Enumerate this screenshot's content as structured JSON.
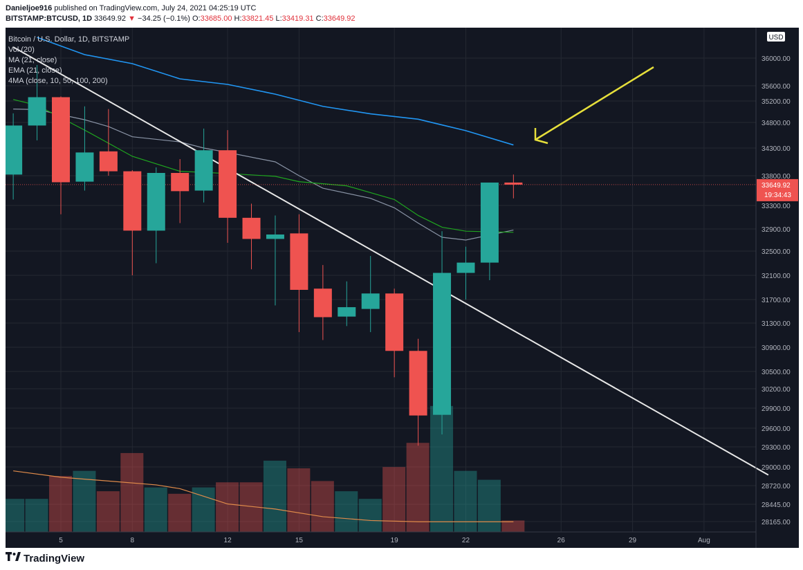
{
  "header": {
    "author": "Danieljoe916",
    "published_text": "published on TradingView.com, July 24, 2021 04:25:19 UTC",
    "symbol": "BITSTAMP:BTCUSD, 1D",
    "last": "33649.92",
    "change_arrow": "▼",
    "change": "−34.25 (−0.1%)",
    "o_label": "O:",
    "o_val": "33685.00",
    "h_label": "H:",
    "h_val": "33821.45",
    "l_label": "L:",
    "l_val": "33419.31",
    "c_label": "C:",
    "c_val": "33649.92"
  },
  "legend": {
    "title": "Bitcoin / U.S. Dollar, 1D, BITSTAMP",
    "items": [
      "Vol (20)",
      "MA (21, close)",
      "EMA (21, close)",
      "4MA (close, 10, 50, 100, 200)"
    ]
  },
  "footer": {
    "brand": "TradingView",
    "logo_icon": "tradingview-logo-icon"
  },
  "colors": {
    "background": "#131722",
    "up": "#26a69a",
    "down": "#ef5350",
    "grid": "#242832",
    "axis_text": "#b2b5be",
    "ma200": "#2196f3",
    "ema": "#1fa61f",
    "ma": "#8a94a6",
    "trendline": "#e8e8e8",
    "vol_ma": "#e08b4a",
    "arrow": "#e6df3b",
    "price_label": "#ef5350"
  },
  "chart_data": {
    "type": "candlestick",
    "currency_label": "USD",
    "y_ticks": [
      {
        "label": "36000.00",
        "v": 36000
      },
      {
        "label": "35600.00",
        "v": 35600
      },
      {
        "label": "35200.00",
        "v": 35200
      },
      {
        "label": "34800.00",
        "v": 34800
      },
      {
        "label": "34300.00",
        "v": 34300
      },
      {
        "label": "33800.00",
        "v": 33800
      },
      {
        "label": "33300.00",
        "v": 33300
      },
      {
        "label": "32900.00",
        "v": 32900
      },
      {
        "label": "32500.00",
        "v": 32500
      },
      {
        "label": "32100.00",
        "v": 32100
      },
      {
        "label": "31700.00",
        "v": 31700
      },
      {
        "label": "31300.00",
        "v": 31300
      },
      {
        "label": "30900.00",
        "v": 30900
      },
      {
        "label": "30500.00",
        "v": 30500
      },
      {
        "label": "30200.00",
        "v": 30200
      },
      {
        "label": "29900.00",
        "v": 29900
      },
      {
        "label": "29600.00",
        "v": 29600
      },
      {
        "label": "29300.00",
        "v": 29300
      },
      {
        "label": "29000.00",
        "v": 29000
      },
      {
        "label": "28720.00",
        "v": 28720
      },
      {
        "label": "28445.00",
        "v": 28445
      },
      {
        "label": "28165.00",
        "v": 28165
      }
    ],
    "x_ticks": [
      {
        "label": "5",
        "day": 5
      },
      {
        "label": "8",
        "day": 8
      },
      {
        "label": "12",
        "day": 12
      },
      {
        "label": "15",
        "day": 15
      },
      {
        "label": "19",
        "day": 19
      },
      {
        "label": "22",
        "day": 22
      },
      {
        "label": "26",
        "day": 26
      },
      {
        "label": "29",
        "day": 29
      },
      {
        "label": "Aug",
        "day": 32
      }
    ],
    "last_price_label": "33649.92",
    "countdown_label": "19:34:43",
    "last_price": 33649.92,
    "candles": [
      {
        "day": 3,
        "o": 33820,
        "h": 34970,
        "l": 33400,
        "c": 34740,
        "vol": 0.26
      },
      {
        "day": 4,
        "o": 34740,
        "h": 35900,
        "l": 34450,
        "c": 35300,
        "vol": 0.26
      },
      {
        "day": 5,
        "o": 35300,
        "h": 35320,
        "l": 33150,
        "c": 33690,
        "vol": 0.44
      },
      {
        "day": 6,
        "o": 33700,
        "h": 35100,
        "l": 33550,
        "c": 34220,
        "vol": 0.48
      },
      {
        "day": 7,
        "o": 34240,
        "h": 35050,
        "l": 33800,
        "c": 33880,
        "vol": 0.32
      },
      {
        "day": 8,
        "o": 33880,
        "h": 33900,
        "l": 32100,
        "c": 32870,
        "vol": 0.62
      },
      {
        "day": 9,
        "o": 32870,
        "h": 33950,
        "l": 32300,
        "c": 33850,
        "vol": 0.35
      },
      {
        "day": 10,
        "o": 33850,
        "h": 34100,
        "l": 33000,
        "c": 33540,
        "vol": 0.3
      },
      {
        "day": 11,
        "o": 33550,
        "h": 34680,
        "l": 33350,
        "c": 34260,
        "vol": 0.35
      },
      {
        "day": 12,
        "o": 34260,
        "h": 34650,
        "l": 32650,
        "c": 33090,
        "vol": 0.39
      },
      {
        "day": 13,
        "o": 33090,
        "h": 33330,
        "l": 32200,
        "c": 32720,
        "vol": 0.39
      },
      {
        "day": 14,
        "o": 32720,
        "h": 33130,
        "l": 31600,
        "c": 32800,
        "vol": 0.56
      },
      {
        "day": 15,
        "o": 32820,
        "h": 33150,
        "l": 31150,
        "c": 31860,
        "vol": 0.5
      },
      {
        "day": 16,
        "o": 31880,
        "h": 32270,
        "l": 31020,
        "c": 31400,
        "vol": 0.4
      },
      {
        "day": 17,
        "o": 31410,
        "h": 32000,
        "l": 31250,
        "c": 31570,
        "vol": 0.32
      },
      {
        "day": 18,
        "o": 31540,
        "h": 32420,
        "l": 31150,
        "c": 31800,
        "vol": 0.26
      },
      {
        "day": 19,
        "o": 31800,
        "h": 31880,
        "l": 30400,
        "c": 30840,
        "vol": 0.51
      },
      {
        "day": 20,
        "o": 30840,
        "h": 31040,
        "l": 29320,
        "c": 29790,
        "vol": 0.7
      },
      {
        "day": 21,
        "o": 29800,
        "h": 32860,
        "l": 29500,
        "c": 32140,
        "vol": 0.99
      },
      {
        "day": 22,
        "o": 32140,
        "h": 32580,
        "l": 31700,
        "c": 32310,
        "vol": 0.48
      },
      {
        "day": 23,
        "o": 32310,
        "h": 33650,
        "l": 32020,
        "c": 33685,
        "vol": 0.41
      },
      {
        "day": 24,
        "o": 33685,
        "h": 33821.45,
        "l": 33419.31,
        "c": 33649.92,
        "vol": 0.09
      }
    ],
    "ma200": [
      [
        4,
        36300
      ],
      [
        6,
        36050
      ],
      [
        8,
        35920
      ],
      [
        10,
        35700
      ],
      [
        12,
        35620
      ],
      [
        14,
        35380
      ],
      [
        16,
        35100
      ],
      [
        18,
        34960
      ],
      [
        20,
        34860
      ],
      [
        22,
        34640
      ],
      [
        24,
        34360
      ]
    ],
    "ema21": [
      [
        3,
        35240
      ],
      [
        4,
        35120
      ],
      [
        6,
        34650
      ],
      [
        8,
        34150
      ],
      [
        10,
        33880
      ],
      [
        12,
        33840
      ],
      [
        14,
        33790
      ],
      [
        15,
        33700
      ],
      [
        17,
        33630
      ],
      [
        19,
        33400
      ],
      [
        20,
        33130
      ],
      [
        21,
        32930
      ],
      [
        22,
        32860
      ],
      [
        24,
        32840
      ]
    ],
    "ma21": [
      [
        3,
        35050
      ],
      [
        4,
        35040
      ],
      [
        6,
        34850
      ],
      [
        7,
        34720
      ],
      [
        8,
        34520
      ],
      [
        10,
        34420
      ],
      [
        11,
        34300
      ],
      [
        12,
        34220
      ],
      [
        14,
        34050
      ],
      [
        15,
        33800
      ],
      [
        16,
        33590
      ],
      [
        18,
        33420
      ],
      [
        19,
        33260
      ],
      [
        20,
        33000
      ],
      [
        21,
        32750
      ],
      [
        22,
        32700
      ],
      [
        24,
        32880
      ]
    ],
    "trendline": [
      [
        3,
        36160
      ],
      [
        34.7,
        28880
      ]
    ],
    "vol_ma": [
      [
        3,
        0.48
      ],
      [
        5,
        0.43
      ],
      [
        7,
        0.4
      ],
      [
        9,
        0.37
      ],
      [
        10,
        0.34
      ],
      [
        11,
        0.28
      ],
      [
        12,
        0.22
      ],
      [
        14,
        0.18
      ],
      [
        16,
        0.12
      ],
      [
        18,
        0.09
      ],
      [
        20,
        0.08
      ],
      [
        22,
        0.08
      ],
      [
        24,
        0.08
      ]
    ]
  }
}
